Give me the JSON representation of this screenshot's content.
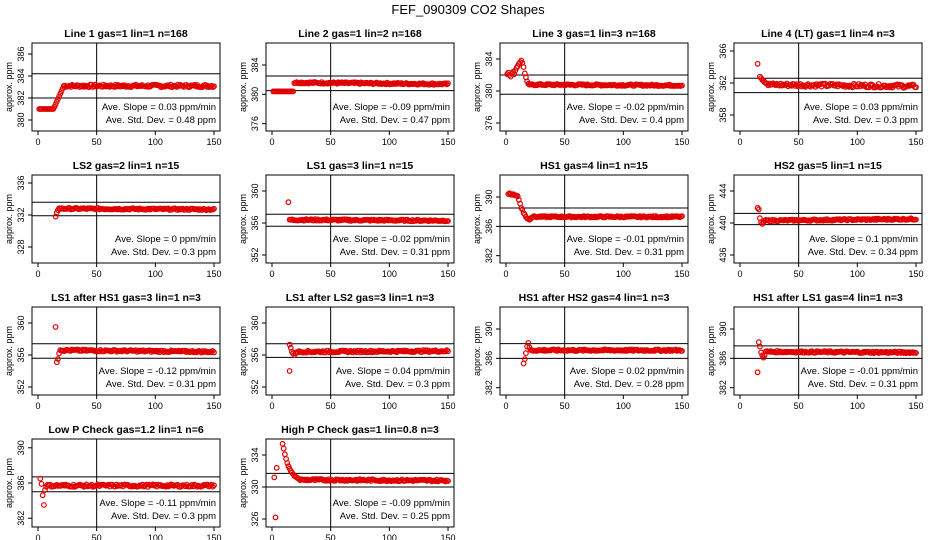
{
  "figure_title": "FEF_090309  CO2 Shapes",
  "colors": {
    "points": "#e00000",
    "axes": "#000000",
    "background": "#ffffff"
  },
  "chart_data": [
    {
      "type": "scatter",
      "title": "Line 1 gas=1 lin=1 n=168",
      "ylabel": "approx. ppm",
      "xlim": [
        0,
        150
      ],
      "xticks": [
        0,
        50,
        100,
        150
      ],
      "ylim": [
        379,
        387
      ],
      "yticks": [
        380,
        382,
        384,
        386
      ],
      "ytick_labels": [
        "380",
        "382",
        "384",
        "386"
      ],
      "hlines": [
        384.2,
        382.0
      ],
      "vline": 50,
      "slope_label": "Ave. Slope = 0.03 ppm/min",
      "std_label": "Ave. Std. Dev. = 0.48 ppm",
      "segments": [
        {
          "x0": 1,
          "x1": 13,
          "y0": 381.0,
          "y1": 381.0,
          "n": 12
        },
        {
          "x0": 14,
          "x1": 22,
          "y0": 381.2,
          "y1": 383.1,
          "n": 9
        },
        {
          "x0": 22,
          "x1": 150,
          "y0": 383.1,
          "y1": 383.1,
          "n": 126,
          "noise": 0.12
        }
      ],
      "points": []
    },
    {
      "type": "scatter",
      "title": "Line 2 gas=1 lin=2 n=168",
      "ylabel": "approx. ppm",
      "xlim": [
        0,
        150
      ],
      "xticks": [
        0,
        50,
        100,
        150
      ],
      "ylim": [
        375,
        387
      ],
      "yticks": [
        376,
        380,
        384
      ],
      "ytick_labels": [
        "376",
        "380",
        "384"
      ],
      "hlines": [
        382.5,
        380.5
      ],
      "vline": 50,
      "slope_label": "Ave. Slope = -0.09 ppm/min",
      "std_label": "Ave. Std. Dev. = 0.47 ppm",
      "segments": [
        {
          "x0": 1,
          "x1": 18,
          "y0": 380.4,
          "y1": 380.4,
          "n": 16
        },
        {
          "x0": 19,
          "x1": 150,
          "y0": 381.6,
          "y1": 381.4,
          "n": 130,
          "noise": 0.12
        }
      ],
      "points": []
    },
    {
      "type": "scatter",
      "title": "Line 3 gas=1 lin=3 n=168",
      "ylabel": "approx. ppm",
      "xlim": [
        0,
        150
      ],
      "xticks": [
        0,
        50,
        100,
        150
      ],
      "ylim": [
        375,
        386
      ],
      "yticks": [
        376,
        380,
        384
      ],
      "ytick_labels": [
        "376",
        "380",
        "384"
      ],
      "hlines": [
        382.0,
        379.6
      ],
      "vline": 50,
      "slope_label": "Ave. Slope = -0.02 ppm/min",
      "std_label": "Ave. Std. Dev. = 0.4 ppm",
      "segments": [
        {
          "x0": 22,
          "x1": 150,
          "y0": 380.8,
          "y1": 380.7,
          "n": 120,
          "noise": 0.1
        }
      ],
      "points": [
        [
          1,
          382.1
        ],
        [
          2,
          382.3
        ],
        [
          3,
          382.0
        ],
        [
          4,
          381.8
        ],
        [
          5,
          382.2
        ],
        [
          6,
          382.4
        ],
        [
          7,
          382.1
        ],
        [
          8,
          382.6
        ],
        [
          9,
          382.9
        ],
        [
          10,
          383.1
        ],
        [
          11,
          383.4
        ],
        [
          12,
          383.6
        ],
        [
          13,
          383.8
        ],
        [
          14,
          383.5
        ],
        [
          15,
          383.0
        ],
        [
          16,
          382.2
        ],
        [
          17,
          381.7
        ],
        [
          18,
          381.2
        ],
        [
          19,
          380.9
        ],
        [
          20,
          380.8
        ],
        [
          21,
          380.8
        ]
      ]
    },
    {
      "type": "scatter",
      "title": "Line 4 (LT) gas=1 lin=4 n=3",
      "ylabel": "approx. ppm",
      "xlim": [
        0,
        150
      ],
      "xticks": [
        0,
        50,
        100,
        150
      ],
      "ylim": [
        356,
        367
      ],
      "yticks": [
        358,
        362,
        366
      ],
      "ytick_labels": [
        "358",
        "362",
        "366"
      ],
      "hlines": [
        362.6,
        360.8
      ],
      "vline": 50,
      "slope_label": "Ave. Slope = 0.03 ppm/min",
      "std_label": "Ave. Std. Dev. = 0.3 ppm",
      "segments": [
        {
          "x0": 24,
          "x1": 150,
          "y0": 361.8,
          "y1": 361.6,
          "n": 120,
          "noise": 0.22
        }
      ],
      "points": [
        [
          15,
          364.4
        ],
        [
          17,
          362.8
        ],
        [
          18,
          362.6
        ],
        [
          19,
          362.4
        ],
        [
          20,
          362.3
        ],
        [
          21,
          362.1
        ],
        [
          22,
          362.0
        ],
        [
          23,
          361.9
        ]
      ]
    },
    {
      "type": "scatter",
      "title": "LS2 gas=2 lin=1 n=15",
      "ylabel": "approx. ppm",
      "xlim": [
        0,
        150
      ],
      "xticks": [
        0,
        50,
        100,
        150
      ],
      "ylim": [
        326,
        337
      ],
      "yticks": [
        328,
        332,
        336
      ],
      "ytick_labels": [
        "328",
        "332",
        "336"
      ],
      "hlines": [
        333.6,
        331.9
      ],
      "vline": 50,
      "slope_label": "Ave. Slope = 0 ppm/min",
      "std_label": "Ave. Std. Dev. = 0.3 ppm",
      "segments": [
        {
          "x0": 18,
          "x1": 150,
          "y0": 332.8,
          "y1": 332.7,
          "n": 120,
          "noise": 0.1
        }
      ],
      "points": [
        [
          15,
          331.8
        ],
        [
          16,
          332.3
        ],
        [
          17,
          332.6
        ]
      ]
    },
    {
      "type": "scatter",
      "title": "LS1 gas=3 lin=1 n=15",
      "ylabel": "approx. ppm",
      "xlim": [
        0,
        150
      ],
      "xticks": [
        0,
        50,
        100,
        150
      ],
      "ylim": [
        351,
        362
      ],
      "yticks": [
        352,
        356,
        360
      ],
      "ytick_labels": [
        "352",
        "356",
        "360"
      ],
      "hlines": [
        357.1,
        355.6
      ],
      "vline": 50,
      "slope_label": "Ave. Slope = -0.02 ppm/min",
      "std_label": "Ave. Std. Dev. = 0.31 ppm",
      "segments": [
        {
          "x0": 15,
          "x1": 150,
          "y0": 356.4,
          "y1": 356.3,
          "n": 125,
          "noise": 0.1
        }
      ],
      "points": [
        [
          14,
          358.6
        ]
      ]
    },
    {
      "type": "scatter",
      "title": "HS1 gas=4 lin=1 n=15",
      "ylabel": "approx. ppm",
      "xlim": [
        0,
        150
      ],
      "xticks": [
        0,
        50,
        100,
        150
      ],
      "ylim": [
        381,
        393
      ],
      "yticks": [
        382,
        386,
        390
      ],
      "ytick_labels": [
        "382",
        "386",
        "390"
      ],
      "hlines": [
        388.5,
        386.0
      ],
      "vline": 50,
      "slope_label": "Ave. Slope = -0.01 ppm/min",
      "std_label": "Ave. Std. Dev. = 0.31 ppm",
      "segments": [
        {
          "x0": 24,
          "x1": 150,
          "y0": 387.3,
          "y1": 387.3,
          "n": 120,
          "noise": 0.1
        }
      ],
      "points": [
        [
          2,
          390.4
        ],
        [
          3,
          390.5
        ],
        [
          4,
          390.4
        ],
        [
          5,
          390.3
        ],
        [
          6,
          390.4
        ],
        [
          7,
          390.3
        ],
        [
          8,
          390.2
        ],
        [
          9,
          390.2
        ],
        [
          10,
          390.1
        ],
        [
          11,
          389.6
        ],
        [
          12,
          389.1
        ],
        [
          13,
          388.5
        ],
        [
          14,
          388.3
        ],
        [
          15,
          387.8
        ],
        [
          16,
          387.6
        ],
        [
          17,
          387.3
        ],
        [
          18,
          387.1
        ],
        [
          19,
          387.0
        ],
        [
          20,
          386.9
        ],
        [
          21,
          387.0
        ],
        [
          22,
          387.2
        ],
        [
          23,
          387.3
        ]
      ]
    },
    {
      "type": "scatter",
      "title": "HS2 gas=5 lin=1 n=15",
      "ylabel": "approx. ppm",
      "xlim": [
        0,
        150
      ],
      "xticks": [
        0,
        50,
        100,
        150
      ],
      "ylim": [
        435,
        446
      ],
      "yticks": [
        436,
        440,
        444
      ],
      "ytick_labels": [
        "436",
        "440",
        "444"
      ],
      "hlines": [
        441.2,
        439.8
      ],
      "vline": 50,
      "slope_label": "Ave. Slope = 0.1 ppm/min",
      "std_label": "Ave. Std. Dev. = 0.34 ppm",
      "segments": [
        {
          "x0": 21,
          "x1": 150,
          "y0": 440.3,
          "y1": 440.5,
          "n": 120,
          "noise": 0.1
        }
      ],
      "points": [
        [
          15,
          441.9
        ],
        [
          16,
          441.7
        ],
        [
          17,
          440.6
        ],
        [
          18,
          440.1
        ],
        [
          19,
          439.9
        ],
        [
          20,
          440.1
        ]
      ]
    },
    {
      "type": "scatter",
      "title": "LS1 after HS1 gas=3 lin=1 n=3",
      "ylabel": "approx. ppm",
      "xlim": [
        0,
        150
      ],
      "xticks": [
        0,
        50,
        100,
        150
      ],
      "ylim": [
        351,
        362
      ],
      "yticks": [
        352,
        356,
        360
      ],
      "ytick_labels": [
        "352",
        "356",
        "360"
      ],
      "hlines": [
        357.4,
        355.6
      ],
      "vline": 50,
      "slope_label": "Ave. Slope = -0.12 ppm/min",
      "std_label": "Ave. Std. Dev. = 0.31 ppm",
      "segments": [
        {
          "x0": 20,
          "x1": 150,
          "y0": 356.6,
          "y1": 356.4,
          "n": 122,
          "noise": 0.12
        }
      ],
      "points": [
        [
          15,
          359.5
        ],
        [
          16,
          355.1
        ],
        [
          17,
          355.5
        ],
        [
          18,
          356.2
        ],
        [
          19,
          356.6
        ]
      ]
    },
    {
      "type": "scatter",
      "title": "LS1 after LS2 gas=3 lin=1 n=3",
      "ylabel": "approx. ppm",
      "xlim": [
        0,
        150
      ],
      "xticks": [
        0,
        50,
        100,
        150
      ],
      "ylim": [
        351,
        362
      ],
      "yticks": [
        352,
        356,
        360
      ],
      "ytick_labels": [
        "352",
        "356",
        "360"
      ],
      "hlines": [
        357.4,
        355.7
      ],
      "vline": 50,
      "slope_label": "Ave. Slope = 0.04 ppm/min",
      "std_label": "Ave. Std. Dev. = 0.3 ppm",
      "segments": [
        {
          "x0": 21,
          "x1": 150,
          "y0": 356.4,
          "y1": 356.5,
          "n": 122,
          "noise": 0.12
        }
      ],
      "points": [
        [
          15,
          357.3
        ],
        [
          16,
          356.9
        ],
        [
          17,
          356.4
        ],
        [
          18,
          356.2
        ],
        [
          19,
          356.0
        ],
        [
          20,
          356.2
        ],
        [
          15,
          354.0
        ]
      ]
    },
    {
      "type": "scatter",
      "title": "HS1 after HS2 gas=4 lin=1 n=3",
      "ylabel": "approx. ppm",
      "xlim": [
        0,
        150
      ],
      "xticks": [
        0,
        50,
        100,
        150
      ],
      "ylim": [
        381,
        393
      ],
      "yticks": [
        382,
        386,
        390
      ],
      "ytick_labels": [
        "382",
        "386",
        "390"
      ],
      "hlines": [
        388.0,
        386.0
      ],
      "vline": 50,
      "slope_label": "Ave. Slope = 0.02 ppm/min",
      "std_label": "Ave. Std. Dev. = 0.28 ppm",
      "segments": [
        {
          "x0": 21,
          "x1": 150,
          "y0": 387.1,
          "y1": 387.1,
          "n": 122,
          "noise": 0.12
        }
      ],
      "points": [
        [
          15,
          385.3
        ],
        [
          16,
          385.9
        ],
        [
          17,
          386.7
        ],
        [
          18,
          387.6
        ],
        [
          19,
          388.1
        ],
        [
          20,
          387.5
        ]
      ]
    },
    {
      "type": "scatter",
      "title": "HS1 after LS1 gas=4 lin=1 n=3",
      "ylabel": "approx. ppm",
      "xlim": [
        0,
        150
      ],
      "xticks": [
        0,
        50,
        100,
        150
      ],
      "ylim": [
        381,
        393
      ],
      "yticks": [
        382,
        386,
        390
      ],
      "ytick_labels": [
        "382",
        "386",
        "390"
      ],
      "hlines": [
        387.7,
        386.0
      ],
      "vline": 50,
      "slope_label": "Ave. Slope = -0.01 ppm/min",
      "std_label": "Ave. Std. Dev. = 0.31 ppm",
      "segments": [
        {
          "x0": 22,
          "x1": 150,
          "y0": 386.9,
          "y1": 386.8,
          "n": 122,
          "noise": 0.12
        }
      ],
      "points": [
        [
          15,
          384.1
        ],
        [
          16,
          388.2
        ],
        [
          17,
          387.6
        ],
        [
          18,
          386.8
        ],
        [
          19,
          386.4
        ],
        [
          20,
          386.1
        ],
        [
          21,
          386.4
        ]
      ]
    },
    {
      "type": "scatter",
      "title": "Low P Check gas=1.2 lin=1 n=6",
      "ylabel": "approx. ppm",
      "xlim": [
        0,
        150
      ],
      "xticks": [
        0,
        50,
        100,
        150
      ],
      "ylim": [
        381,
        391
      ],
      "yticks": [
        382,
        386,
        390
      ],
      "ytick_labels": [
        "382",
        "386",
        "390"
      ],
      "hlines": [
        386.7,
        385.0
      ],
      "vline": 50,
      "slope_label": "Ave. Slope = -0.11 ppm/min",
      "std_label": "Ave. Std. Dev. = 0.3 ppm",
      "segments": [
        {
          "x0": 7,
          "x1": 150,
          "y0": 385.7,
          "y1": 385.7,
          "n": 130,
          "noise": 0.14
        }
      ],
      "points": [
        [
          2,
          386.5
        ],
        [
          3,
          385.9
        ],
        [
          4,
          384.6
        ],
        [
          5,
          383.5
        ],
        [
          6,
          385.2
        ]
      ]
    },
    {
      "type": "scatter",
      "title": "High P Check gas=1 lin=0.8 n=3",
      "ylabel": "approx. ppm",
      "xlim": [
        0,
        150
      ],
      "xticks": [
        0,
        50,
        100,
        150
      ],
      "ylim": [
        325,
        336
      ],
      "yticks": [
        326,
        330,
        334
      ],
      "ytick_labels": [
        "326",
        "330",
        "334"
      ],
      "hlines": [
        331.7,
        330.0
      ],
      "vline": 50,
      "slope_label": "Ave. Slope = -0.09 ppm/min",
      "std_label": "Ave. Std. Dev. = 0.25 ppm",
      "segments": [
        {
          "x0": 24,
          "x1": 150,
          "y0": 330.9,
          "y1": 330.8,
          "n": 120,
          "noise": 0.12
        }
      ],
      "points": [
        [
          2,
          331.2
        ],
        [
          3,
          326.2
        ],
        [
          4,
          332.4
        ],
        [
          9,
          335.4
        ],
        [
          10,
          334.8
        ],
        [
          11,
          334.1
        ],
        [
          12,
          333.5
        ],
        [
          13,
          333.0
        ],
        [
          14,
          332.6
        ],
        [
          15,
          332.3
        ],
        [
          16,
          332.0
        ],
        [
          17,
          331.8
        ],
        [
          18,
          331.6
        ],
        [
          19,
          331.4
        ],
        [
          20,
          331.3
        ],
        [
          21,
          331.2
        ],
        [
          22,
          331.1
        ],
        [
          23,
          331.0
        ]
      ]
    }
  ]
}
